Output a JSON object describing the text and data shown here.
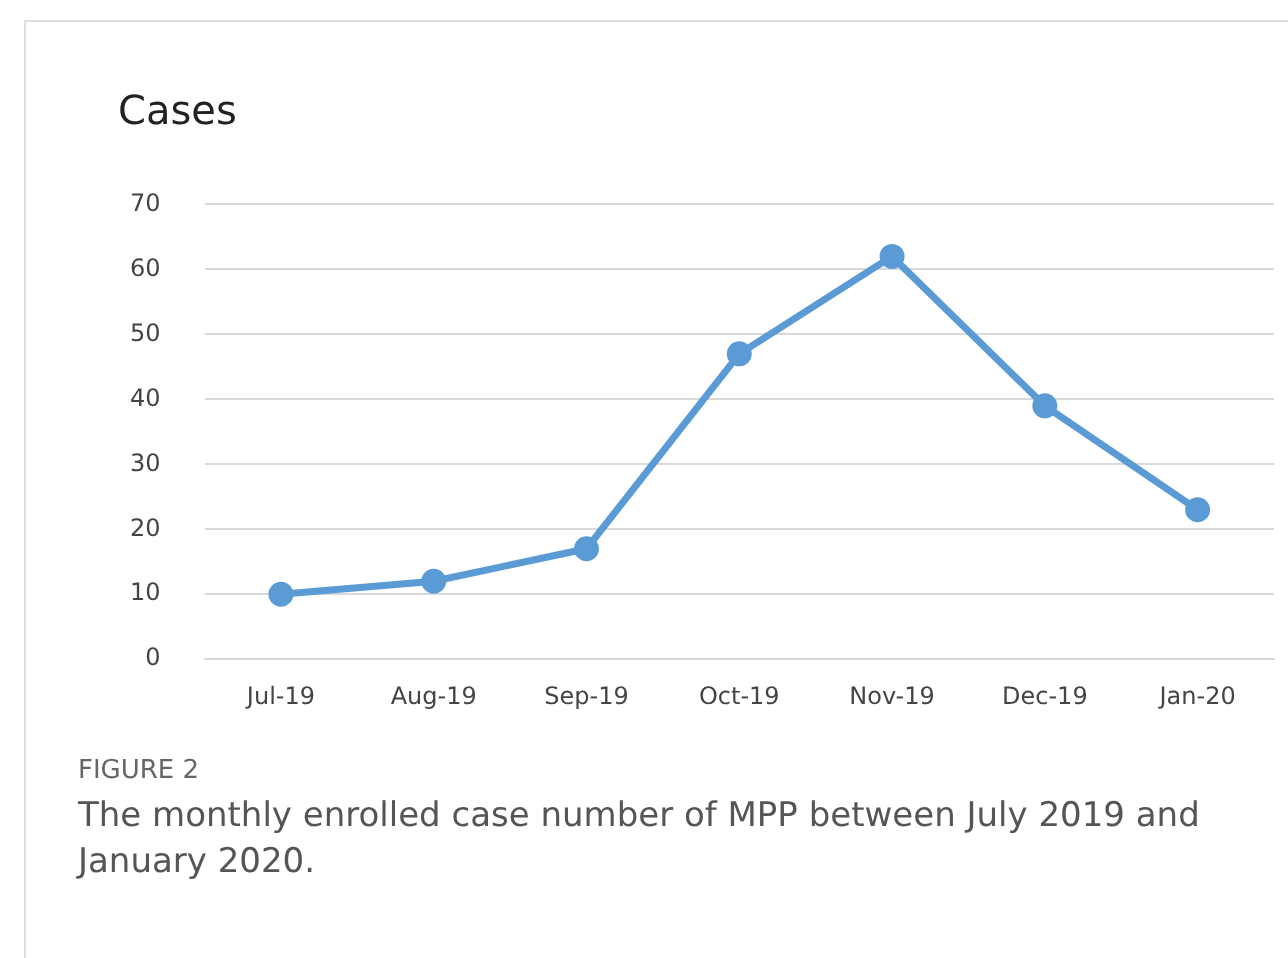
{
  "chart_data": {
    "type": "line",
    "ylabel": "Cases",
    "categories": [
      "Jul-19",
      "Aug-19",
      "Sep-19",
      "Oct-19",
      "Nov-19",
      "Dec-19",
      "Jan-20"
    ],
    "series": [
      {
        "color": "#5b9bd5",
        "values": [
          10,
          12,
          17,
          47,
          62,
          39,
          23
        ]
      }
    ],
    "ylim": [
      0,
      70
    ],
    "yticks": [
      0,
      10,
      20,
      30,
      40,
      50,
      60,
      70
    ],
    "grid": "y",
    "legend": false,
    "marker": "circle",
    "line_style": "solid",
    "annotations": [
      "FIGURE 2",
      "The monthly enrolled case number of MPP between July 2019 and January 2020."
    ]
  }
}
